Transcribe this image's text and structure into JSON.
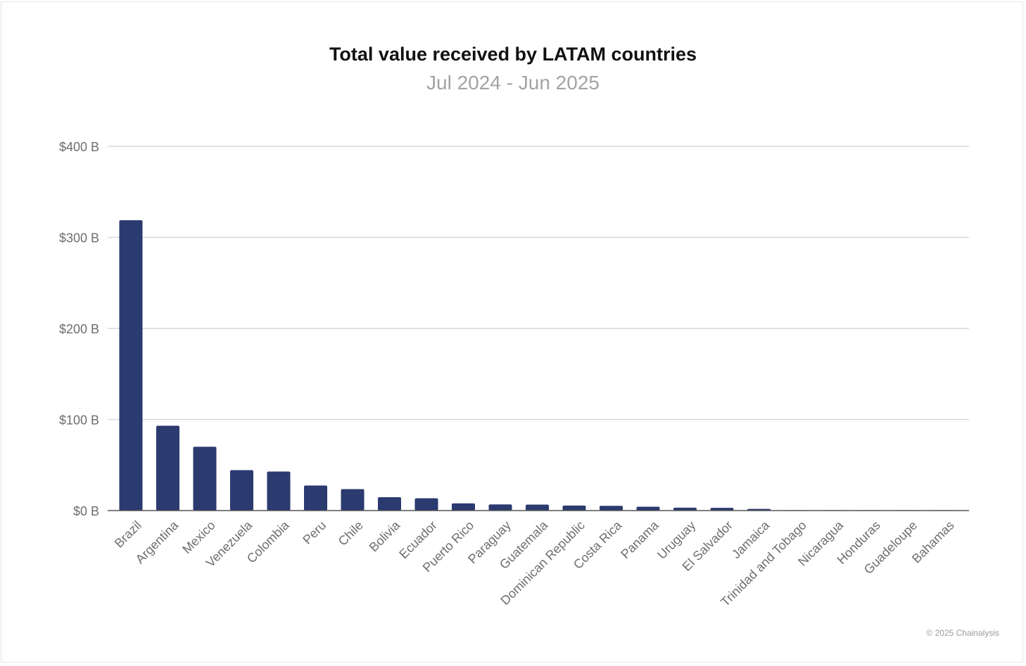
{
  "chart_data": {
    "type": "bar",
    "title": "Total value received by LATAM countries",
    "subtitle": "Jul 2024 - Jun 2025",
    "xlabel": "",
    "ylabel": "",
    "ylim": [
      0,
      400
    ],
    "yticks": [
      0,
      100,
      200,
      300,
      400
    ],
    "ytick_labels": [
      "$0 B",
      "$100 B",
      "$200 B",
      "$300 B",
      "$400 B"
    ],
    "grid": true,
    "legend": "none",
    "bar_color": "#2b3a6f",
    "categories": [
      "Brazil",
      "Argentina",
      "Mexico",
      "Venezuela",
      "Colombia",
      "Peru",
      "Chile",
      "Bolivia",
      "Ecuador",
      "Puerto Rico",
      "Paraguay",
      "Guatemala",
      "Dominican Republic",
      "Costa Rica",
      "Panama",
      "Uruguay",
      "El Salvador",
      "Jamaica",
      "Trinidad and Tobago",
      "Nicaragua",
      "Honduras",
      "Guadeloupe",
      "Bahamas"
    ],
    "values": [
      318.8,
      93.1,
      70.1,
      44.4,
      42.9,
      27.5,
      23.6,
      14.7,
      13.5,
      7.9,
      6.8,
      6.6,
      5.5,
      5.2,
      4.2,
      3.2,
      3.0,
      1.8,
      0.4,
      0.3,
      0.3,
      0.2,
      0.1
    ]
  },
  "footer": {
    "copyright": "© 2025 Chainalysis"
  }
}
